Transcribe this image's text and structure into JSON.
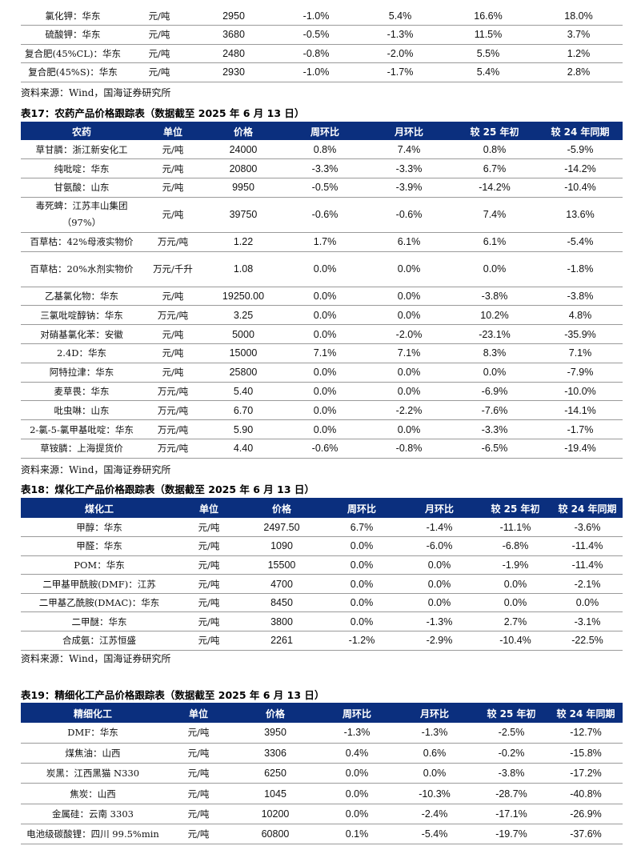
{
  "fertilizer": {
    "rows": [
      [
        "氯化钾：华东",
        "元/吨",
        "2950",
        "-1.0%",
        "5.4%",
        "16.6%",
        "18.0%"
      ],
      [
        "硫酸钾：华东",
        "元/吨",
        "3680",
        "-0.5%",
        "-1.3%",
        "11.5%",
        "3.7%"
      ],
      [
        "复合肥(45%CL)：华东",
        "元/吨",
        "2480",
        "-0.8%",
        "-2.0%",
        "5.5%",
        "1.2%"
      ],
      [
        "复合肥(45%S)：华东",
        "元/吨",
        "2930",
        "-1.0%",
        "-1.7%",
        "5.4%",
        "2.8%"
      ]
    ],
    "source": "资料来源：Wind，国海证券研究所"
  },
  "table17": {
    "caption": "表17：农药产品价格跟踪表（数据截至 2025 年 6 月 13 日）",
    "headers": [
      "农药",
      "单位",
      "价格",
      "周环比",
      "月环比",
      "较 25 年初",
      "较 24 年同期"
    ],
    "rows": [
      [
        "草甘膦：浙江新安化工",
        "元/吨",
        "24000",
        "0.8%",
        "7.4%",
        "0.8%",
        "-5.9%"
      ],
      [
        "纯吡啶：华东",
        "元/吨",
        "20800",
        "-3.3%",
        "-3.3%",
        "6.7%",
        "-14.2%"
      ],
      [
        "甘氨酸：山东",
        "元/吨",
        "9950",
        "-0.5%",
        "-3.9%",
        "-14.2%",
        "-10.4%"
      ],
      [
        "毒死蜱：江苏丰山集团（97%）",
        "元/吨",
        "39750",
        "-0.6%",
        "-0.6%",
        "7.4%",
        "13.6%"
      ],
      [
        "百草枯：42%母液实物价",
        "万元/吨",
        "1.22",
        "1.7%",
        "6.1%",
        "6.1%",
        "-5.4%"
      ],
      [
        "百草枯：20%水剂实物价",
        "万元/千升",
        "1.08",
        "0.0%",
        "0.0%",
        "0.0%",
        "-1.8%"
      ],
      [
        "乙基氯化物：华东",
        "元/吨",
        "19250.00",
        "0.0%",
        "0.0%",
        "-3.8%",
        "-3.8%"
      ],
      [
        "三氯吡啶醇钠：华东",
        "万元/吨",
        "3.25",
        "0.0%",
        "0.0%",
        "10.2%",
        "4.8%"
      ],
      [
        "对硝基氯化苯：安徽",
        "元/吨",
        "5000",
        "0.0%",
        "-2.0%",
        "-23.1%",
        "-35.9%"
      ],
      [
        "2.4D：华东",
        "元/吨",
        "15000",
        "7.1%",
        "7.1%",
        "8.3%",
        "7.1%"
      ],
      [
        "阿特拉津：华东",
        "元/吨",
        "25800",
        "0.0%",
        "0.0%",
        "0.0%",
        "-7.9%"
      ],
      [
        "麦草畏：华东",
        "万元/吨",
        "5.40",
        "0.0%",
        "0.0%",
        "-6.9%",
        "-10.0%"
      ],
      [
        "吡虫啉：山东",
        "万元/吨",
        "6.70",
        "0.0%",
        "-2.2%",
        "-7.6%",
        "-14.1%"
      ],
      [
        "2-氯-5-氯甲基吡啶：华东",
        "万元/吨",
        "5.90",
        "0.0%",
        "0.0%",
        "-3.3%",
        "-1.7%"
      ],
      [
        "草铵膦：上海提货价",
        "万元/吨",
        "4.40",
        "-0.6%",
        "-0.8%",
        "-6.5%",
        "-19.4%"
      ]
    ],
    "source": "资料来源：Wind，国海证券研究所"
  },
  "table18": {
    "caption": "表18：煤化工产品价格跟踪表（数据截至 2025 年 6 月 13 日）",
    "headers": [
      "煤化工",
      "单位",
      "价格",
      "周环比",
      "月环比",
      "较 25 年初",
      "较 24 年同期"
    ],
    "rows": [
      [
        "甲醇：华东",
        "元/吨",
        "2497.50",
        "6.7%",
        "-1.4%",
        "-11.1%",
        "-3.6%"
      ],
      [
        "甲醛：华东",
        "元/吨",
        "1090",
        "0.0%",
        "-6.0%",
        "-6.8%",
        "-11.4%"
      ],
      [
        "POM：华东",
        "元/吨",
        "15500",
        "0.0%",
        "0.0%",
        "-1.9%",
        "-11.4%"
      ],
      [
        "二甲基甲酰胺(DMF)：江苏",
        "元/吨",
        "4700",
        "0.0%",
        "0.0%",
        "0.0%",
        "-2.1%"
      ],
      [
        "二甲基乙酰胺(DMAC)：华东",
        "元/吨",
        "8450",
        "0.0%",
        "0.0%",
        "0.0%",
        "0.0%"
      ],
      [
        "二甲醚：华东",
        "元/吨",
        "3800",
        "0.0%",
        "-1.3%",
        "2.7%",
        "-3.1%"
      ],
      [
        "合成氨：江苏恒盛",
        "元/吨",
        "2261",
        "-1.2%",
        "-2.9%",
        "-10.4%",
        "-22.5%"
      ]
    ],
    "source": "资料来源：Wind，国海证券研究所"
  },
  "table19": {
    "caption": "表19：精细化工产品价格跟踪表（数据截至 2025 年 6 月 13 日）",
    "headers": [
      "精细化工",
      "单位",
      "价格",
      "周环比",
      "月环比",
      "较 25 年初",
      "较 24 年同期"
    ],
    "rows": [
      [
        "DMF：华东",
        "元/吨",
        "3950",
        "-1.3%",
        "-1.3%",
        "-2.5%",
        "-12.7%"
      ],
      [
        "煤焦油：山西",
        "元/吨",
        "3306",
        "0.4%",
        "0.6%",
        "-0.2%",
        "-15.8%"
      ],
      [
        "炭黑：江西黑猫 N330",
        "元/吨",
        "6250",
        "0.0%",
        "0.0%",
        "-3.8%",
        "-17.2%"
      ],
      [
        "焦炭：山西",
        "元/吨",
        "1045",
        "0.0%",
        "-10.3%",
        "-28.7%",
        "-40.8%"
      ],
      [
        "金属硅：云南 3303",
        "元/吨",
        "10200",
        "0.0%",
        "-2.4%",
        "-17.1%",
        "-26.9%"
      ],
      [
        "电池级碳酸锂：四川 99.5%min",
        "元/吨",
        "60800",
        "0.1%",
        "-5.4%",
        "-19.7%",
        "-37.6%"
      ]
    ]
  }
}
